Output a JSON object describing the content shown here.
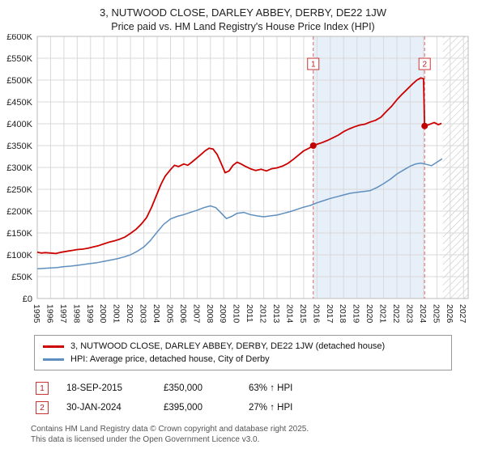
{
  "title": "3, NUTWOOD CLOSE, DARLEY ABBEY, DERBY, DE22 1JW",
  "subtitle": "Price paid vs. HM Land Registry's House Price Index (HPI)",
  "chart_data": {
    "type": "line",
    "xlim": [
      1995,
      2027.35
    ],
    "ylim": [
      0,
      600
    ],
    "unit": "GBP thousands",
    "x_ticks": [
      1995,
      1996,
      1997,
      1998,
      1999,
      2000,
      2001,
      2002,
      2003,
      2004,
      2005,
      2006,
      2007,
      2008,
      2009,
      2010,
      2011,
      2012,
      2013,
      2014,
      2015,
      2016,
      2017,
      2018,
      2019,
      2020,
      2021,
      2022,
      2023,
      2024,
      2025,
      2026,
      2027
    ],
    "y_tick_values": [
      0,
      50,
      100,
      150,
      200,
      250,
      300,
      350,
      400,
      450,
      500,
      550,
      600
    ],
    "y_tick_labels": [
      "£0",
      "£50K",
      "£100K",
      "£150K",
      "£200K",
      "£250K",
      "£300K",
      "£350K",
      "£400K",
      "£450K",
      "£500K",
      "£550K",
      "£600K"
    ],
    "grid": true,
    "shaded_region": {
      "from": 2015.72,
      "to": 2024.08,
      "color": "#e7eff9"
    },
    "hatched_region": {
      "from": 2025.45,
      "to": 2027.35
    },
    "marker_box_y": 537,
    "markers": [
      {
        "n": "1",
        "x": 2015.72,
        "y": 350
      },
      {
        "n": "2",
        "x": 2024.08,
        "y": 395
      }
    ],
    "series": [
      {
        "id": "property-price-line",
        "name": "3, NUTWOOD CLOSE, DARLEY ABBEY, DERBY, DE22 1JW (detached house)",
        "color": "#cc0000",
        "width": 1.8,
        "points": [
          [
            1995,
            106
          ],
          [
            1995.3,
            104
          ],
          [
            1995.6,
            105
          ],
          [
            1996,
            104
          ],
          [
            1996.4,
            103
          ],
          [
            1996.8,
            106
          ],
          [
            1997.2,
            108
          ],
          [
            1997.6,
            110
          ],
          [
            1998,
            112
          ],
          [
            1998.4,
            113
          ],
          [
            1998.8,
            115
          ],
          [
            1999.2,
            118
          ],
          [
            1999.6,
            121
          ],
          [
            2000,
            125
          ],
          [
            2000.4,
            129
          ],
          [
            2000.8,
            132
          ],
          [
            2001.2,
            136
          ],
          [
            2001.6,
            141
          ],
          [
            2002,
            149
          ],
          [
            2002.4,
            158
          ],
          [
            2002.8,
            170
          ],
          [
            2003.2,
            185
          ],
          [
            2003.6,
            210
          ],
          [
            2004,
            240
          ],
          [
            2004.3,
            262
          ],
          [
            2004.6,
            280
          ],
          [
            2005,
            295
          ],
          [
            2005.3,
            305
          ],
          [
            2005.6,
            302
          ],
          [
            2006,
            308
          ],
          [
            2006.3,
            305
          ],
          [
            2006.6,
            312
          ],
          [
            2007,
            322
          ],
          [
            2007.3,
            330
          ],
          [
            2007.6,
            338
          ],
          [
            2007.9,
            344
          ],
          [
            2008.2,
            342
          ],
          [
            2008.5,
            330
          ],
          [
            2008.8,
            310
          ],
          [
            2009.1,
            288
          ],
          [
            2009.4,
            292
          ],
          [
            2009.7,
            305
          ],
          [
            2010,
            312
          ],
          [
            2010.3,
            308
          ],
          [
            2010.6,
            303
          ],
          [
            2011,
            297
          ],
          [
            2011.4,
            293
          ],
          [
            2011.8,
            296
          ],
          [
            2012.2,
            292
          ],
          [
            2012.6,
            297
          ],
          [
            2013,
            299
          ],
          [
            2013.4,
            303
          ],
          [
            2013.8,
            309
          ],
          [
            2014.2,
            318
          ],
          [
            2014.6,
            328
          ],
          [
            2015,
            338
          ],
          [
            2015.4,
            344
          ],
          [
            2015.72,
            350
          ],
          [
            2016,
            353
          ],
          [
            2016.4,
            357
          ],
          [
            2016.8,
            362
          ],
          [
            2017.2,
            368
          ],
          [
            2017.6,
            374
          ],
          [
            2018,
            382
          ],
          [
            2018.4,
            388
          ],
          [
            2018.8,
            393
          ],
          [
            2019.2,
            397
          ],
          [
            2019.6,
            399
          ],
          [
            2020,
            404
          ],
          [
            2020.4,
            408
          ],
          [
            2020.8,
            415
          ],
          [
            2021.2,
            428
          ],
          [
            2021.6,
            440
          ],
          [
            2022,
            455
          ],
          [
            2022.4,
            468
          ],
          [
            2022.8,
            480
          ],
          [
            2023.2,
            492
          ],
          [
            2023.5,
            500
          ],
          [
            2023.8,
            505
          ],
          [
            2024,
            503
          ],
          [
            2024.08,
            395
          ],
          [
            2024.4,
            398
          ],
          [
            2024.8,
            403
          ],
          [
            2025.1,
            398
          ],
          [
            2025.35,
            401
          ]
        ]
      },
      {
        "id": "hpi-line",
        "name": "HPI: Average price, detached house, City of Derby",
        "color": "#5f8fbf",
        "width": 1.5,
        "points": [
          [
            1995,
            68
          ],
          [
            1995.5,
            69
          ],
          [
            1996,
            70
          ],
          [
            1996.5,
            71
          ],
          [
            1997,
            73
          ],
          [
            1997.5,
            74
          ],
          [
            1998,
            76
          ],
          [
            1998.5,
            78
          ],
          [
            1999,
            80
          ],
          [
            1999.5,
            82
          ],
          [
            2000,
            85
          ],
          [
            2000.5,
            88
          ],
          [
            2001,
            91
          ],
          [
            2001.5,
            95
          ],
          [
            2002,
            100
          ],
          [
            2002.5,
            108
          ],
          [
            2003,
            118
          ],
          [
            2003.5,
            133
          ],
          [
            2004,
            152
          ],
          [
            2004.5,
            170
          ],
          [
            2005,
            182
          ],
          [
            2005.5,
            188
          ],
          [
            2006,
            192
          ],
          [
            2006.5,
            197
          ],
          [
            2007,
            202
          ],
          [
            2007.5,
            208
          ],
          [
            2008,
            212
          ],
          [
            2008.4,
            208
          ],
          [
            2008.8,
            196
          ],
          [
            2009.2,
            183
          ],
          [
            2009.6,
            188
          ],
          [
            2010,
            195
          ],
          [
            2010.5,
            197
          ],
          [
            2011,
            192
          ],
          [
            2011.5,
            189
          ],
          [
            2012,
            187
          ],
          [
            2012.5,
            189
          ],
          [
            2013,
            191
          ],
          [
            2013.5,
            195
          ],
          [
            2014,
            199
          ],
          [
            2014.5,
            204
          ],
          [
            2015,
            209
          ],
          [
            2015.5,
            213
          ],
          [
            2016,
            219
          ],
          [
            2016.5,
            224
          ],
          [
            2017,
            229
          ],
          [
            2017.5,
            233
          ],
          [
            2018,
            237
          ],
          [
            2018.5,
            241
          ],
          [
            2019,
            243
          ],
          [
            2019.5,
            245
          ],
          [
            2020,
            247
          ],
          [
            2020.5,
            254
          ],
          [
            2021,
            263
          ],
          [
            2021.5,
            273
          ],
          [
            2022,
            285
          ],
          [
            2022.5,
            294
          ],
          [
            2023,
            303
          ],
          [
            2023.4,
            308
          ],
          [
            2023.8,
            310
          ],
          [
            2024.2,
            307
          ],
          [
            2024.6,
            304
          ],
          [
            2025,
            312
          ],
          [
            2025.4,
            320
          ]
        ]
      }
    ]
  },
  "legend": {
    "items": [
      {
        "label": "3, NUTWOOD CLOSE, DARLEY ABBEY, DERBY, DE22 1JW (detached house)",
        "color": "#cc0000"
      },
      {
        "label": "HPI: Average price, detached house, City of Derby",
        "color": "#5f8fbf"
      }
    ]
  },
  "transactions": [
    {
      "n": "1",
      "date": "18-SEP-2015",
      "price": "£350,000",
      "hpi": "63% ↑ HPI"
    },
    {
      "n": "2",
      "date": "30-JAN-2024",
      "price": "£395,000",
      "hpi": "27% ↑ HPI"
    }
  ],
  "footer": {
    "line1": "Contains HM Land Registry data © Crown copyright and database right 2025.",
    "line2": "This data is licensed under the Open Government Licence v3.0."
  }
}
